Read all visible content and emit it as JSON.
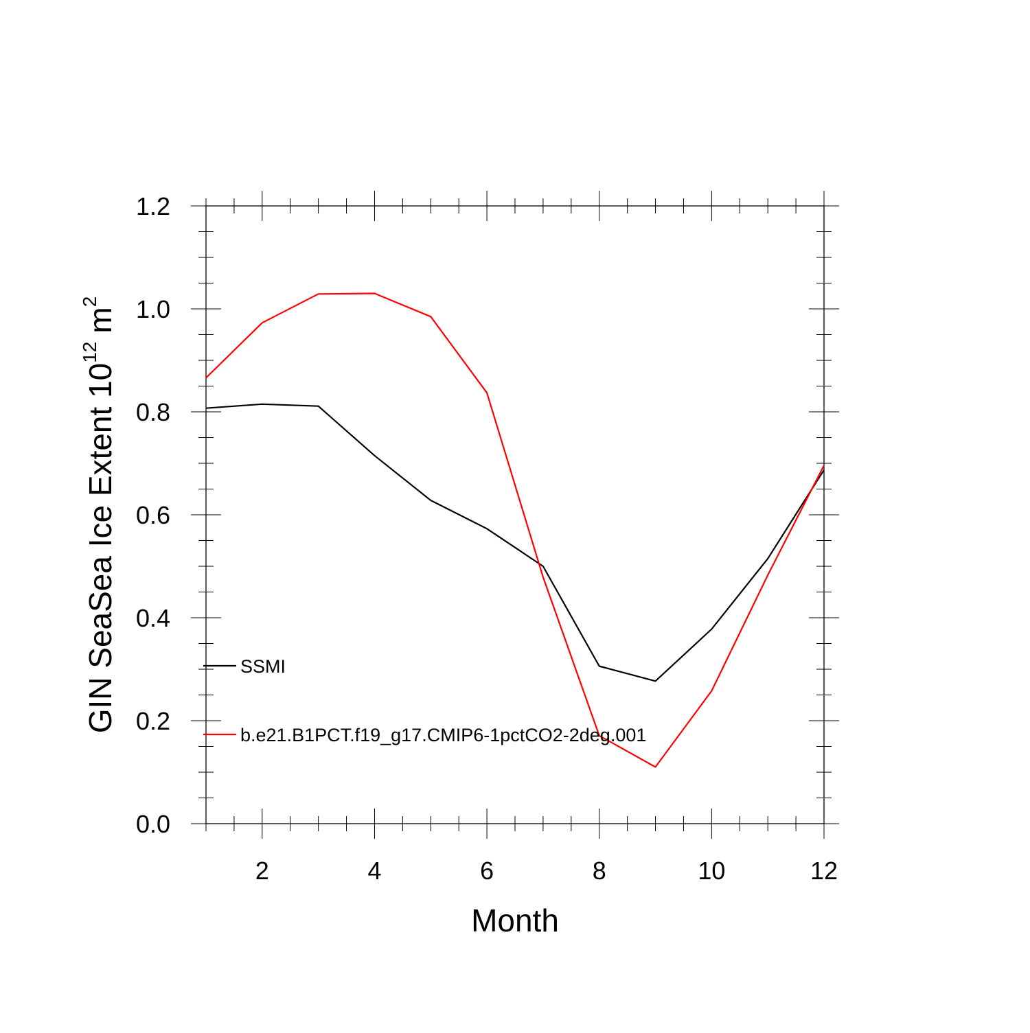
{
  "chart_data": {
    "type": "line",
    "title": "",
    "xlabel": "Month",
    "ylabel": {
      "main": "GIN SeaSea Ice Extent 10",
      "exponent": "12",
      "unit": "m",
      "unit_exponent": "2"
    },
    "xlim": [
      1,
      12
    ],
    "ylim": [
      0.0,
      1.2
    ],
    "x": [
      1,
      2,
      3,
      4,
      5,
      6,
      7,
      8,
      9,
      10,
      11,
      12
    ],
    "x_ticks": [
      2,
      4,
      6,
      8,
      10,
      12
    ],
    "x_tick_labels": [
      "2",
      "4",
      "6",
      "8",
      "10",
      "12"
    ],
    "y_ticks": [
      0.0,
      0.2,
      0.4,
      0.6,
      0.8,
      1.0,
      1.2
    ],
    "y_tick_labels": [
      "0.0",
      "0.2",
      "0.4",
      "0.6",
      "0.8",
      "1.0",
      "1.2"
    ],
    "grid": false,
    "legend_position": "left-inside",
    "series": [
      {
        "name": "SSMI",
        "color": "#000000",
        "values": [
          0.807,
          0.815,
          0.811,
          0.715,
          0.628,
          0.573,
          0.5,
          0.306,
          0.277,
          0.378,
          0.515,
          0.687
        ]
      },
      {
        "name": "b.e21.B1PCT.f19_g17.CMIP6-1pctCO2-2deg.001",
        "color": "#ff0000",
        "values": [
          0.866,
          0.973,
          1.029,
          1.03,
          0.985,
          0.837,
          0.479,
          0.171,
          0.11,
          0.258,
          0.483,
          0.696
        ]
      }
    ]
  }
}
